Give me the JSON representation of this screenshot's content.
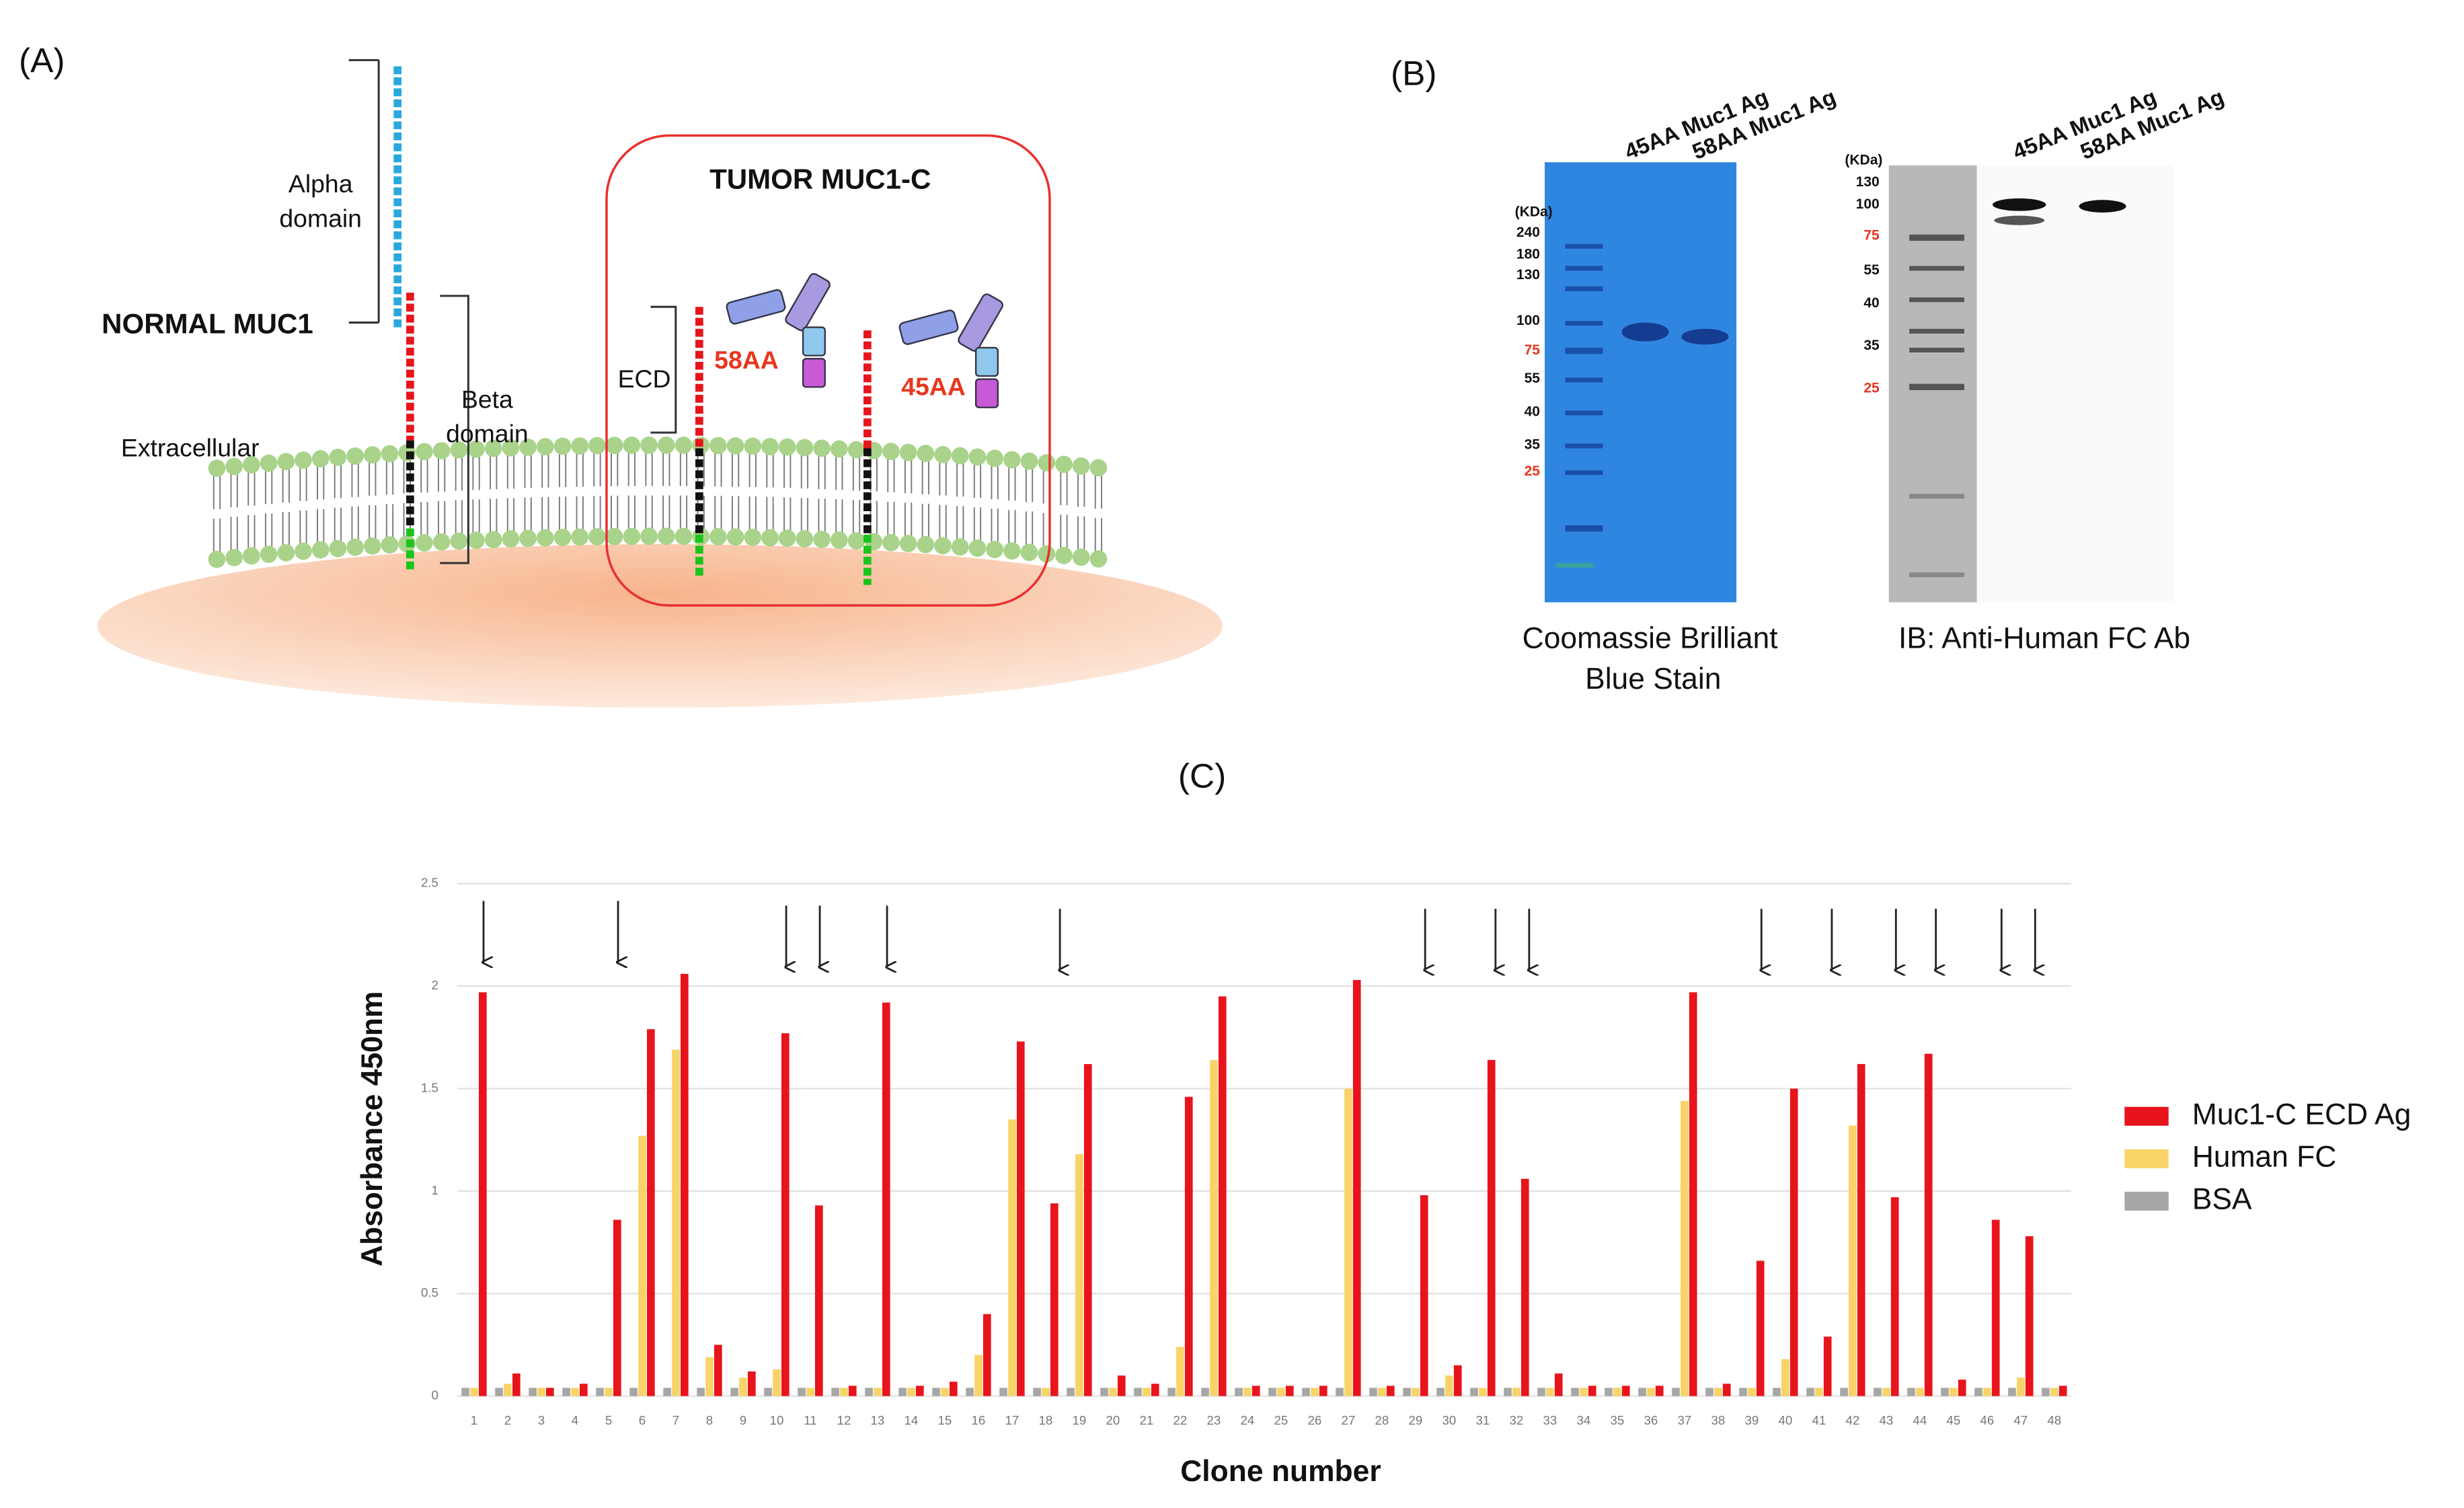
{
  "panel_a": {
    "label": "(A)",
    "alpha_domain": [
      "Alpha",
      "domain"
    ],
    "normal_label": "NORMAL MUC1",
    "beta_domain": [
      "Beta",
      "domain"
    ],
    "extracellular": "Extracellular",
    "tumor_title": "TUMOR MUC1-C",
    "ecd": "ECD",
    "antibodies": [
      "58AA",
      "45AA"
    ]
  },
  "panel_b": {
    "label": "(B)",
    "gels": [
      {
        "lanes": [
          "45AA Muc1 Ag",
          "58AA Muc1 Ag"
        ],
        "ladder_unit": "(KDa)",
        "ladder": [
          "240",
          "180",
          "130",
          "100",
          "75",
          "55",
          "40",
          "35",
          "25"
        ],
        "caption": [
          "Coomassie Brilliant",
          "Blue Stain"
        ]
      },
      {
        "lanes": [
          "45AA Muc1 Ag",
          "58AA Muc1 Ag"
        ],
        "ladder_unit": "(KDa)",
        "ladder": [
          "130",
          "100",
          "75",
          "55",
          "40",
          "35",
          "25"
        ],
        "caption": [
          "IB: Anti-Human FC Ab"
        ]
      }
    ]
  },
  "panel_c": {
    "label": "(C)"
  },
  "chart_data": {
    "type": "bar",
    "xlabel": "Clone number",
    "ylabel": "Absorbance 450nm",
    "categories": [
      "1",
      "2",
      "3",
      "4",
      "5",
      "6",
      "7",
      "8",
      "9",
      "10",
      "11",
      "12",
      "13",
      "14",
      "15",
      "16",
      "17",
      "18",
      "19",
      "20",
      "21",
      "22",
      "23",
      "24",
      "25",
      "26",
      "27",
      "28",
      "29",
      "30",
      "31",
      "32",
      "33",
      "34",
      "35",
      "36",
      "37",
      "38",
      "39",
      "40",
      "41",
      "42",
      "43",
      "44",
      "45",
      "46",
      "47",
      "48"
    ],
    "series": [
      {
        "name": "Muc1-C ECD Ag",
        "color": "#e8141c",
        "values": [
          1.97,
          0.11,
          0.04,
          0.06,
          0.86,
          1.79,
          2.06,
          0.25,
          0.12,
          1.77,
          0.93,
          0.05,
          1.92,
          0.05,
          0.07,
          0.4,
          1.73,
          0.94,
          1.62,
          0.1,
          0.06,
          1.46,
          1.95,
          0.05,
          0.05,
          0.05,
          2.03,
          0.05,
          0.98,
          0.15,
          1.64,
          1.06,
          0.11,
          0.05,
          0.05,
          0.05,
          1.97,
          0.06,
          0.66,
          1.5,
          0.29,
          1.62,
          0.97,
          1.67,
          0.08,
          0.86,
          0.78,
          0.05
        ]
      },
      {
        "name": "Human FC",
        "color": "#f8d468",
        "values": [
          0.04,
          0.06,
          0.04,
          0.04,
          0.04,
          1.27,
          1.69,
          0.19,
          0.09,
          0.13,
          0.04,
          0.04,
          0.04,
          0.04,
          0.04,
          0.2,
          1.35,
          0.04,
          1.18,
          0.04,
          0.04,
          0.24,
          1.64,
          0.04,
          0.04,
          0.04,
          1.5,
          0.04,
          0.04,
          0.1,
          0.04,
          0.04,
          0.04,
          0.04,
          0.04,
          0.04,
          1.44,
          0.04,
          0.04,
          0.18,
          0.04,
          1.32,
          0.04,
          0.04,
          0.04,
          0.04,
          0.09,
          0.04
        ]
      },
      {
        "name": "BSA",
        "color": "#a6a6a6",
        "values": [
          0.04,
          0.04,
          0.04,
          0.04,
          0.04,
          0.04,
          0.04,
          0.04,
          0.04,
          0.04,
          0.04,
          0.04,
          0.04,
          0.04,
          0.04,
          0.04,
          0.04,
          0.04,
          0.04,
          0.04,
          0.04,
          0.04,
          0.04,
          0.04,
          0.04,
          0.04,
          0.04,
          0.04,
          0.04,
          0.04,
          0.04,
          0.04,
          0.04,
          0.04,
          0.04,
          0.04,
          0.04,
          0.04,
          0.04,
          0.04,
          0.04,
          0.04,
          0.04,
          0.04,
          0.04,
          0.04,
          0.04,
          0.04
        ]
      }
    ],
    "ylim": [
      0,
      2.5
    ],
    "yticks": [
      0,
      0.5,
      1,
      1.5,
      2,
      2.5
    ],
    "grid": true,
    "legend": "right"
  }
}
